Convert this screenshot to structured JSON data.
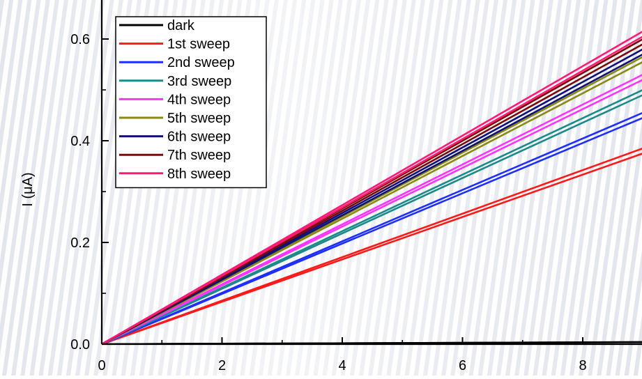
{
  "chart_data": {
    "type": "line",
    "title": "",
    "xlabel": "",
    "ylabel": "I (μA)",
    "xlim": [
      0,
      9
    ],
    "ylim": [
      0,
      0.62
    ],
    "xticks": [
      0,
      2,
      4,
      6,
      8
    ],
    "yticks": [
      0.0,
      0.2,
      0.4,
      0.6
    ],
    "xtick_labels": [
      "0",
      "2",
      "4",
      "6",
      "8"
    ],
    "ytick_labels": [
      "0.0",
      "0.2",
      "0.4",
      "0.6"
    ],
    "grid": false,
    "legend_position": "top-left",
    "series": [
      {
        "name": "dark",
        "color": "#000000",
        "x": [
          0,
          9
        ],
        "y": [
          0.0,
          0.004
        ],
        "y_return": [
          0.0,
          0.004
        ]
      },
      {
        "name": "1st sweep",
        "color": "#ff1a1a",
        "x": [
          0,
          9
        ],
        "y": [
          0.0,
          0.385
        ],
        "y_return": [
          0.0,
          0.375
        ]
      },
      {
        "name": "2nd sweep",
        "color": "#1f2fff",
        "x": [
          0,
          9
        ],
        "y": [
          0.0,
          0.455
        ],
        "y_return": [
          0.0,
          0.445
        ]
      },
      {
        "name": "3rd sweep",
        "color": "#1a8a8a",
        "x": [
          0,
          9
        ],
        "y": [
          0.0,
          0.5
        ],
        "y_return": [
          0.0,
          0.49
        ]
      },
      {
        "name": "4th sweep",
        "color": "#ff33ff",
        "x": [
          0,
          9
        ],
        "y": [
          0.0,
          0.53
        ],
        "y_return": [
          0.0,
          0.52
        ]
      },
      {
        "name": "5th sweep",
        "color": "#8a8a10",
        "x": [
          0,
          9
        ],
        "y": [
          0.0,
          0.565
        ],
        "y_return": [
          0.0,
          0.555
        ]
      },
      {
        "name": "6th sweep",
        "color": "#10107a",
        "x": [
          0,
          9
        ],
        "y": [
          0.0,
          0.58
        ],
        "y_return": [
          0.0,
          0.57
        ]
      },
      {
        "name": "7th sweep",
        "color": "#7a0a0a",
        "x": [
          0,
          9
        ],
        "y": [
          0.0,
          0.6
        ],
        "y_return": [
          0.0,
          0.59
        ]
      },
      {
        "name": "8th sweep",
        "color": "#ff1a75",
        "x": [
          0,
          9
        ],
        "y": [
          0.0,
          0.615
        ],
        "y_return": [
          0.0,
          0.605
        ]
      }
    ]
  }
}
